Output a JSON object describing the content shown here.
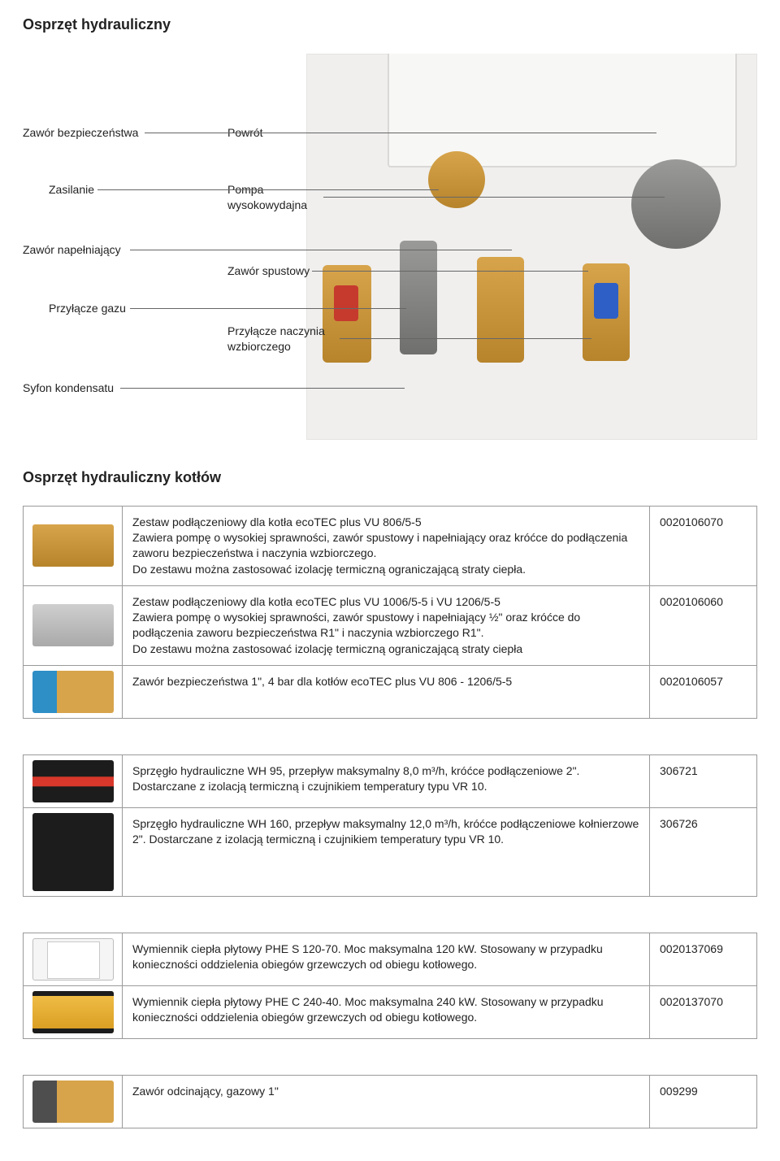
{
  "heading": "Osprzęt hydrauliczny",
  "diagram": {
    "callouts": {
      "safety_valve": "Zawór bezpieczeństwa",
      "return": "Powrót",
      "supply": "Zasilanie",
      "pump": "Pompa\nwysokowydajna",
      "fill_valve": "Zawór napełniający",
      "drain_valve": "Zawór spustowy",
      "gas_conn": "Przyłącze gazu",
      "vessel_conn": "Przyłącze naczynia\nwzbiorczego",
      "siphon": "Syfon kondensatu"
    },
    "colors": {
      "leader": "#666666",
      "brass": "#c3923a",
      "red": "#c63a2e",
      "blue": "#2e5fc6",
      "grey": "#8a8a88",
      "photo_bg": "#f0efee"
    }
  },
  "subsection": "Osprzęt hydrauliczny kotłów",
  "tables": [
    {
      "rows": [
        {
          "thumb": "tb-brass",
          "desc": "Zestaw podłączeniowy dla kotła ecoTEC plus VU 806/5-5\nZawiera pompę o wysokiej sprawności, zawór spustowy i napełniający oraz króćce do podłączenia zaworu bezpieczeństwa i naczynia wzbiorczego.\nDo zestawu można zastosować izolację termiczną ograniczającą straty ciepła.",
          "code": "0020106070"
        },
        {
          "thumb": "tb-grey",
          "desc": "Zestaw podłączeniowy dla kotła ecoTEC plus VU 1006/5-5 i VU 1206/5-5\nZawiera pompę o wysokiej sprawności, zawór spustowy i napełniający ½\" oraz króćce do podłączenia zaworu bezpieczeństwa R1\" i naczynia wzbiorczego R1\".\nDo zestawu można zastosować izolację termiczną ograniczającą straty ciepła",
          "code": "0020106060"
        },
        {
          "thumb": "tb-safety",
          "desc": "Zawór bezpieczeństwa 1\", 4 bar dla kotłów ecoTEC plus VU 806 - 1206/5-5",
          "code": "0020106057"
        }
      ]
    },
    {
      "rows": [
        {
          "thumb": "tb-dark tb-redstrip",
          "desc": "Sprzęgło hydrauliczne WH 95, przepływ maksymalny 8,0 m³/h, króćce podłączeniowe 2\". Dostarczane z izolacją termiczną i czujnikiem temperatury typu VR 10.",
          "code": "306721"
        },
        {
          "thumb": "tb-dark",
          "thumb_tall": true,
          "desc": "Sprzęgło hydrauliczne WH 160, przepływ maksymalny 12,0 m³/h, króćce podłączeniowe kołnierzowe 2\". Dostarczane z izolacją termiczną i czujnikiem temperatury typu VR 10.",
          "code": "306726"
        }
      ]
    },
    {
      "rows": [
        {
          "thumb": "tb-plate",
          "desc": "Wymiennik ciepła płytowy PHE S 120-70. Moc maksymalna 120 kW. Stosowany w przypadku konieczności oddzielenia obiegów grzewczych od obiegu kotłowego.",
          "code": "0020137069"
        },
        {
          "thumb": "tb-yellow",
          "desc": "Wymiennik ciepła płytowy PHE C 240-40. Moc maksymalna 240 kW. Stosowany w przypadku konieczności oddzielenia obiegów grzewczych od obiegu kotłowego.",
          "code": "0020137070"
        }
      ]
    },
    {
      "rows": [
        {
          "thumb": "tb-valve",
          "desc": "Zawór odcinający, gazowy 1\"",
          "code": "009299"
        }
      ]
    }
  ]
}
